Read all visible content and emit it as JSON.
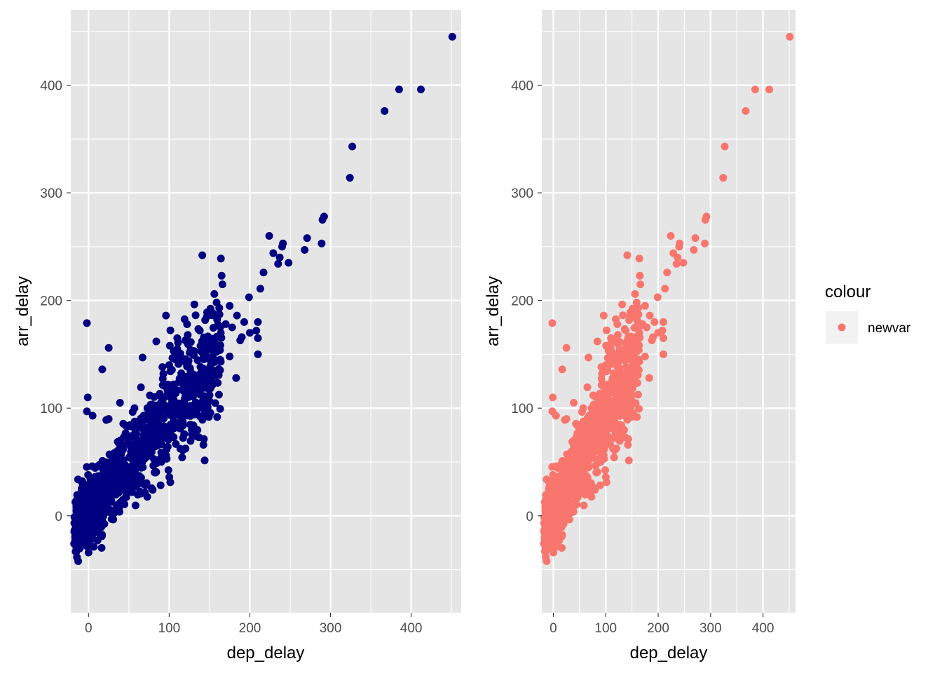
{
  "colors": {
    "panel_background": "#e5e5e5",
    "gridline": "#ffffff",
    "left_points": "#000080",
    "right_points": "#f8766d",
    "legend_key_background": "#f2f2f2"
  },
  "legend": {
    "title": "colour",
    "placement": "right",
    "entries": [
      {
        "label": "newvar",
        "color": "#f8766d"
      }
    ]
  },
  "chart_data": [
    {
      "type": "scatter",
      "xlabel": "dep_delay",
      "ylabel": "arr_delay",
      "xlim": [
        -22,
        462
      ],
      "ylim": [
        -90,
        470
      ],
      "xticks": [
        0,
        100,
        200,
        300,
        400
      ],
      "yticks": [
        0,
        100,
        200,
        300,
        400
      ],
      "xtick_labels": [
        "0",
        "100",
        "200",
        "300",
        "400"
      ],
      "ytick_labels": [
        "0",
        "100",
        "200",
        "300",
        "400"
      ],
      "grid": true,
      "point_color": "#000080",
      "outliers": [
        [
          451,
          445
        ],
        [
          412,
          396
        ],
        [
          385,
          396
        ],
        [
          367,
          376
        ],
        [
          327,
          343
        ],
        [
          324,
          314
        ],
        [
          292,
          278
        ],
        [
          290,
          275
        ],
        [
          289,
          253
        ],
        [
          268,
          247
        ],
        [
          271,
          258
        ],
        [
          248,
          235
        ],
        [
          240,
          250
        ],
        [
          241,
          253
        ],
        [
          237,
          240
        ],
        [
          235,
          234
        ],
        [
          229,
          244
        ],
        [
          224,
          260
        ],
        [
          217,
          226
        ],
        [
          213,
          211
        ],
        [
          210,
          180
        ],
        [
          208,
          172
        ],
        [
          210,
          165
        ],
        [
          199,
          203
        ],
        [
          193,
          180
        ],
        [
          184,
          186
        ],
        [
          178,
          175
        ],
        [
          170,
          178
        ],
        [
          175,
          195
        ],
        [
          166,
          215
        ],
        [
          165,
          223
        ],
        [
          162,
          193
        ],
        [
          156,
          206
        ],
        [
          147,
          189
        ],
        [
          141,
          242
        ],
        [
          138,
          172
        ],
        [
          123,
          168
        ],
        [
          120,
          163
        ],
        [
          96,
          186
        ],
        [
          84,
          162
        ],
        [
          67,
          147
        ],
        [
          25,
          156
        ],
        [
          17,
          136
        ],
        [
          -2,
          179
        ],
        [
          -1,
          110
        ],
        [
          -2,
          97
        ],
        [
          5,
          93
        ],
        [
          22,
          89
        ],
        [
          25,
          90
        ],
        [
          57,
          100
        ],
        [
          39,
          105
        ],
        [
          100,
          140
        ],
        [
          113,
          147
        ],
        [
          131,
          153
        ],
        [
          144,
          155
        ],
        [
          152,
          147
        ],
        [
          150,
          119
        ],
        [
          163,
          154
        ],
        [
          190,
          166
        ],
        [
          210,
          150
        ],
        [
          183,
          128
        ],
        [
          110,
          165
        ],
        [
          97,
          53
        ],
        [
          130,
          95
        ],
        [
          130,
          84
        ],
        [
          73,
          100
        ],
        [
          95,
          98
        ],
        [
          163,
          145
        ],
        [
          175,
          148
        ],
        [
          200,
          170
        ],
        [
          188,
          163
        ]
      ],
      "core_cluster": {
        "trend_slope": 0.9,
        "trend_intercept": 4,
        "spread": 22,
        "extent_x": [
          -18,
          165
        ],
        "approx_point_count": 1600,
        "note": "dense mass of points"
      }
    },
    {
      "type": "scatter",
      "xlabel": "dep_delay",
      "ylabel": "arr_delay",
      "xlim": [
        -22,
        462
      ],
      "ylim": [
        -90,
        470
      ],
      "xticks": [
        0,
        100,
        200,
        300,
        400
      ],
      "yticks": [
        0,
        100,
        200,
        300,
        400
      ],
      "xtick_labels": [
        "0",
        "100",
        "200",
        "300",
        "400"
      ],
      "ytick_labels": [
        "0",
        "100",
        "200",
        "300",
        "400"
      ],
      "grid": true,
      "point_color": "#f8766d",
      "series_name": "newvar",
      "same_data_as_left": true
    }
  ]
}
